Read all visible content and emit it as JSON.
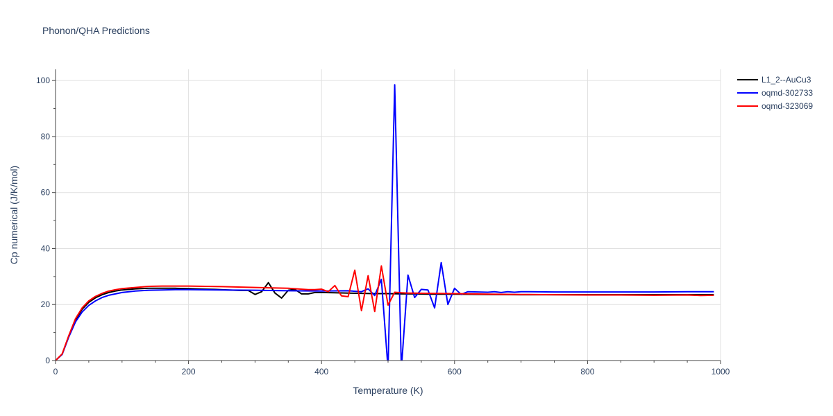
{
  "title": "Phonon/QHA Predictions",
  "chart_data": {
    "type": "line",
    "title": "Phonon/QHA Predictions",
    "xlabel": "Temperature (K)",
    "ylabel": "Cp numerical (J/K/mol)",
    "xlim": [
      0,
      1000
    ],
    "ylim": [
      0,
      104
    ],
    "x_ticks": [
      0,
      200,
      400,
      600,
      800,
      1000
    ],
    "y_ticks": [
      0,
      20,
      40,
      60,
      80,
      100
    ],
    "grid": true,
    "legend_position": "top-right outside",
    "series": [
      {
        "name": "L1_2--AuCu3",
        "color": "#000000",
        "x": [
          0,
          10,
          20,
          30,
          40,
          50,
          60,
          70,
          80,
          90,
          100,
          120,
          140,
          160,
          180,
          200,
          220,
          240,
          260,
          280,
          290,
          300,
          310,
          320,
          330,
          340,
          350,
          360,
          370,
          380,
          390,
          400,
          420,
          440,
          460,
          480,
          500,
          520,
          540,
          560,
          580,
          600,
          650,
          700,
          750,
          800,
          850,
          900,
          950,
          990
        ],
        "y": [
          0,
          2.3,
          8.8,
          14.5,
          18.3,
          20.8,
          22.4,
          23.5,
          24.3,
          24.8,
          25.2,
          25.6,
          25.8,
          25.8,
          25.8,
          25.7,
          25.5,
          25.4,
          25.2,
          25.0,
          25.0,
          23.6,
          24.6,
          27.8,
          24.1,
          22.3,
          25.1,
          25.4,
          23.8,
          23.8,
          24.3,
          24.3,
          24.2,
          24.1,
          24.0,
          23.9,
          23.9,
          23.8,
          23.8,
          23.7,
          23.7,
          23.7,
          23.6,
          23.5,
          23.5,
          23.5,
          23.5,
          23.5,
          23.5,
          23.5
        ]
      },
      {
        "name": "oqmd-302733",
        "color": "#0000ff",
        "x": [
          0,
          10,
          20,
          30,
          40,
          50,
          60,
          70,
          80,
          90,
          100,
          120,
          140,
          160,
          180,
          200,
          250,
          300,
          350,
          400,
          440,
          460,
          470,
          480,
          490,
          500,
          510,
          520,
          530,
          540,
          550,
          560,
          570,
          580,
          590,
          600,
          610,
          620,
          650,
          660,
          670,
          680,
          690,
          700,
          750,
          800,
          850,
          900,
          950,
          990
        ],
        "y": [
          0,
          2.2,
          8.5,
          13.8,
          17.3,
          19.7,
          21.3,
          22.5,
          23.3,
          23.8,
          24.3,
          24.8,
          25.1,
          25.2,
          25.3,
          25.3,
          25.2,
          25.1,
          24.9,
          24.8,
          24.9,
          24.6,
          25.6,
          23.2,
          29.0,
          -3.0,
          98.5,
          -3.0,
          30.5,
          22.5,
          25.4,
          25.2,
          18.8,
          35.0,
          20.0,
          25.8,
          23.6,
          24.6,
          24.4,
          24.6,
          24.3,
          24.6,
          24.4,
          24.6,
          24.5,
          24.5,
          24.5,
          24.5,
          24.6,
          24.6
        ]
      },
      {
        "name": "oqmd-323069",
        "color": "#ff0000",
        "x": [
          0,
          10,
          20,
          30,
          40,
          50,
          60,
          70,
          80,
          90,
          100,
          120,
          140,
          160,
          180,
          200,
          250,
          300,
          350,
          380,
          390,
          400,
          410,
          420,
          430,
          440,
          450,
          460,
          470,
          480,
          490,
          500,
          510,
          520,
          530,
          540,
          560,
          600,
          650,
          700,
          750,
          800,
          850,
          900,
          950,
          970,
          990
        ],
        "y": [
          0,
          2.4,
          9.0,
          14.9,
          18.8,
          21.3,
          22.9,
          24.0,
          24.8,
          25.3,
          25.7,
          26.1,
          26.5,
          26.6,
          26.6,
          26.6,
          26.4,
          26.1,
          25.8,
          25.3,
          25.3,
          25.5,
          24.6,
          26.8,
          23.1,
          22.8,
          32.3,
          17.8,
          30.3,
          17.5,
          33.8,
          19.8,
          24.4,
          24.2,
          24.1,
          24.1,
          24.0,
          23.9,
          23.7,
          23.6,
          23.5,
          23.4,
          23.4,
          23.3,
          23.4,
          23.2,
          23.3
        ]
      }
    ]
  }
}
